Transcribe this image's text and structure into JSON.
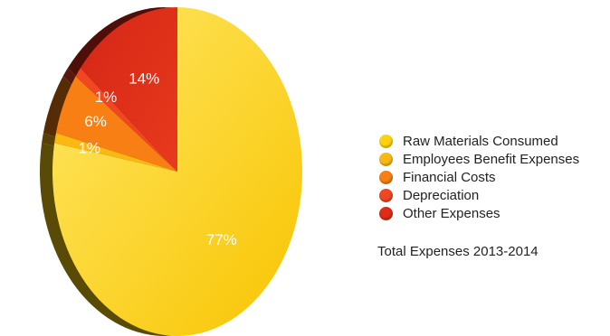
{
  "chart_data": {
    "type": "pie",
    "caption": "Total Expenses 2013-2014",
    "slices": [
      {
        "label": "Raw Materials Consumed",
        "value": 77,
        "display": "77%",
        "color": "#fdd20e"
      },
      {
        "label": "Employees Benefit Expenses",
        "value": 1,
        "display": "1%",
        "color": "#fbb712"
      },
      {
        "label": "Financial Costs",
        "value": 6,
        "display": "6%",
        "color": "#f77f13"
      },
      {
        "label": "Depreciation",
        "value": 1,
        "display": "1%",
        "color": "#f04621"
      },
      {
        "label": "Other Expenses",
        "value": 14,
        "display": "14%",
        "color": "#de2c16"
      }
    ],
    "legend_position": "right"
  }
}
